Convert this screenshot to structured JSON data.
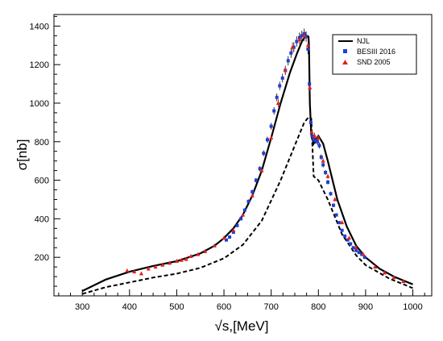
{
  "chart_data": {
    "type": "scatter",
    "title": "",
    "xlabel": "√s,[MeV]",
    "ylabel": "σ[nb]",
    "xlim": [
      240,
      1040
    ],
    "ylim": [
      0,
      1460
    ],
    "x_ticks": [
      "300",
      "400",
      "500",
      "600",
      "700",
      "800",
      "900",
      "1000"
    ],
    "y_ticks": [
      "200",
      "400",
      "600",
      "800",
      "1000",
      "1200",
      "1400"
    ],
    "grid": false,
    "legend_position": "top-right",
    "colors": {
      "njl": "#000000",
      "besiii": "#1f3fd6",
      "snd": "#e02020"
    },
    "series": [
      {
        "name": "NJL",
        "kind": "line",
        "style": "solid",
        "x": [
          300,
          350,
          400,
          450,
          500,
          550,
          580,
          600,
          620,
          640,
          660,
          680,
          700,
          720,
          740,
          755,
          765,
          772,
          776,
          779,
          780,
          782,
          785,
          790,
          795,
          800,
          810,
          820,
          840,
          860,
          880,
          900,
          930,
          960,
          1000
        ],
        "y": [
          25,
          85,
          125,
          155,
          180,
          220,
          260,
          300,
          350,
          420,
          520,
          650,
          820,
          1000,
          1160,
          1260,
          1320,
          1345,
          1350,
          1345,
          1300,
          1000,
          830,
          790,
          810,
          830,
          790,
          700,
          500,
          360,
          260,
          200,
          140,
          100,
          60
        ]
      },
      {
        "name": "",
        "kind": "line",
        "style": "dashed",
        "x": [
          300,
          350,
          400,
          450,
          500,
          550,
          600,
          640,
          680,
          720,
          750,
          770,
          780,
          785,
          790,
          800,
          820,
          850,
          880,
          900,
          950,
          1000
        ],
        "y": [
          10,
          45,
          70,
          95,
          115,
          145,
          195,
          265,
          390,
          600,
          780,
          900,
          930,
          920,
          620,
          600,
          500,
          320,
          210,
          160,
          90,
          40
        ]
      },
      {
        "name": "BESIII 2016",
        "kind": "points",
        "marker": "square",
        "x": [
          605,
          612,
          620,
          628,
          636,
          644,
          652,
          660,
          668,
          676,
          684,
          692,
          700,
          706,
          712,
          718,
          724,
          730,
          736,
          742,
          748,
          754,
          760,
          765,
          770,
          774,
          778,
          781,
          784,
          787,
          790,
          794,
          798,
          802,
          806,
          810,
          815,
          820,
          826,
          832,
          838,
          844,
          850,
          856,
          862,
          868,
          874,
          880,
          886,
          892,
          898
        ],
        "y": [
          290,
          305,
          330,
          365,
          400,
          445,
          490,
          540,
          600,
          660,
          740,
          810,
          880,
          960,
          1030,
          1090,
          1130,
          1170,
          1220,
          1260,
          1290,
          1320,
          1340,
          1350,
          1360,
          1345,
          1280,
          1100,
          900,
          830,
          810,
          805,
          800,
          780,
          720,
          680,
          640,
          590,
          530,
          470,
          420,
          380,
          340,
          310,
          290,
          270,
          250,
          235,
          225,
          215,
          200
        ]
      },
      {
        "name": "SND 2005",
        "kind": "points",
        "marker": "triangle",
        "x": [
          395,
          410,
          425,
          440,
          455,
          470,
          485,
          500,
          510,
          520,
          530,
          545,
          560,
          580,
          600,
          620,
          640,
          660,
          680,
          700,
          715,
          730,
          745,
          760,
          770,
          778,
          782,
          786,
          792,
          800,
          810,
          820,
          835,
          850,
          865,
          880,
          895,
          920,
          940,
          960,
          980
        ],
        "y": [
          130,
          125,
          115,
          140,
          150,
          160,
          170,
          180,
          185,
          190,
          205,
          215,
          230,
          260,
          300,
          340,
          420,
          520,
          650,
          820,
          1000,
          1170,
          1290,
          1330,
          1350,
          1300,
          1080,
          850,
          830,
          820,
          700,
          620,
          500,
          380,
          300,
          250,
          215,
          150,
          120,
          95,
          75
        ]
      }
    ]
  }
}
